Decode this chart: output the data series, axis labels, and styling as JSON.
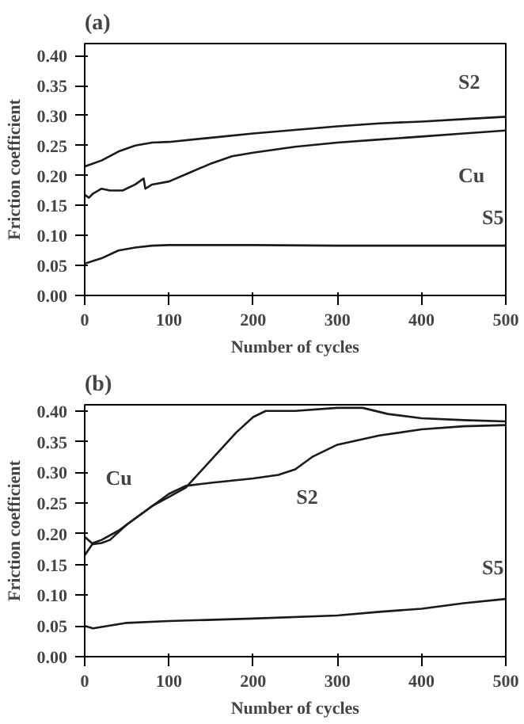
{
  "chart_data": [
    {
      "type": "line",
      "title": "(a)",
      "xlabel": "Number of cycles",
      "ylabel": "Friction coefficient",
      "xlim": [
        0,
        500
      ],
      "ylim": [
        0,
        0.42
      ],
      "xticks": [
        0,
        100,
        200,
        300,
        400,
        500
      ],
      "yticks": [
        {
          "value": 0,
          "label": "0.00"
        },
        {
          "value": 0.05,
          "label": "0.05"
        },
        {
          "value": 0.1,
          "label": "0.10"
        },
        {
          "value": 0.15,
          "label": "0.15"
        },
        {
          "value": 0.2,
          "label": "0.20"
        },
        {
          "value": 0.25,
          "label": "0.25"
        },
        {
          "value": 0.3,
          "label": "0.30"
        },
        {
          "value": 0.35,
          "label": "0.35"
        },
        {
          "value": 0.4,
          "label": "0.40"
        }
      ],
      "grid": false,
      "legend": false,
      "series": [
        {
          "name": "S2",
          "color": "#1a1a1a",
          "x": [
            0,
            20,
            40,
            60,
            80,
            100,
            150,
            200,
            250,
            300,
            350,
            400,
            450,
            500
          ],
          "values": [
            0.215,
            0.225,
            0.24,
            0.25,
            0.255,
            0.256,
            0.263,
            0.27,
            0.276,
            0.282,
            0.287,
            0.29,
            0.294,
            0.298
          ]
        },
        {
          "name": "Cu",
          "color": "#1a1a1a",
          "x": [
            0,
            5,
            10,
            20,
            30,
            45,
            60,
            70,
            72,
            80,
            100,
            125,
            150,
            175,
            200,
            250,
            300,
            350,
            400,
            450,
            500
          ],
          "values": [
            0.168,
            0.163,
            0.17,
            0.178,
            0.175,
            0.175,
            0.185,
            0.195,
            0.178,
            0.185,
            0.19,
            0.205,
            0.22,
            0.232,
            0.238,
            0.248,
            0.255,
            0.26,
            0.265,
            0.27,
            0.275
          ]
        },
        {
          "name": "S5",
          "color": "#1a1a1a",
          "x": [
            0,
            20,
            40,
            60,
            80,
            100,
            200,
            300,
            400,
            500
          ],
          "values": [
            0.053,
            0.062,
            0.075,
            0.08,
            0.083,
            0.084,
            0.084,
            0.083,
            0.083,
            0.083
          ]
        }
      ]
    },
    {
      "type": "line",
      "title": "(b)",
      "xlabel": "Number of cycles",
      "ylabel": "Friction coefficient",
      "xlim": [
        0,
        500
      ],
      "ylim": [
        0,
        0.41
      ],
      "xticks": [
        0,
        100,
        200,
        300,
        400,
        500
      ],
      "yticks": [
        {
          "value": 0,
          "label": "0.00"
        },
        {
          "value": 0.05,
          "label": "0.05"
        },
        {
          "value": 0.1,
          "label": "0.10"
        },
        {
          "value": 0.15,
          "label": "0.15"
        },
        {
          "value": 0.2,
          "label": "0.20"
        },
        {
          "value": 0.25,
          "label": "0.25"
        },
        {
          "value": 0.3,
          "label": "0.30"
        },
        {
          "value": 0.35,
          "label": "0.35"
        },
        {
          "value": 0.4,
          "label": "0.40"
        }
      ],
      "grid": false,
      "legend": false,
      "series": [
        {
          "name": "Cu",
          "color": "#1a1a1a",
          "x": [
            0,
            10,
            20,
            40,
            60,
            80,
            100,
            120,
            140,
            160,
            180,
            200,
            215,
            250,
            300,
            330,
            360,
            400,
            450,
            500
          ],
          "values": [
            0.165,
            0.185,
            0.19,
            0.205,
            0.225,
            0.245,
            0.26,
            0.275,
            0.305,
            0.335,
            0.365,
            0.39,
            0.4,
            0.4,
            0.405,
            0.405,
            0.395,
            0.388,
            0.385,
            0.383
          ]
        },
        {
          "name": "S2",
          "color": "#1a1a1a",
          "x": [
            0,
            10,
            20,
            30,
            50,
            80,
            100,
            120,
            150,
            200,
            230,
            250,
            270,
            300,
            350,
            400,
            450,
            500
          ],
          "values": [
            0.195,
            0.183,
            0.185,
            0.19,
            0.215,
            0.245,
            0.265,
            0.278,
            0.283,
            0.29,
            0.296,
            0.305,
            0.325,
            0.345,
            0.36,
            0.37,
            0.375,
            0.377
          ]
        },
        {
          "name": "S5",
          "color": "#1a1a1a",
          "x": [
            0,
            10,
            50,
            100,
            200,
            300,
            350,
            400,
            450,
            500
          ],
          "values": [
            0.05,
            0.046,
            0.055,
            0.058,
            0.062,
            0.067,
            0.073,
            0.078,
            0.087,
            0.094
          ]
        }
      ]
    }
  ]
}
